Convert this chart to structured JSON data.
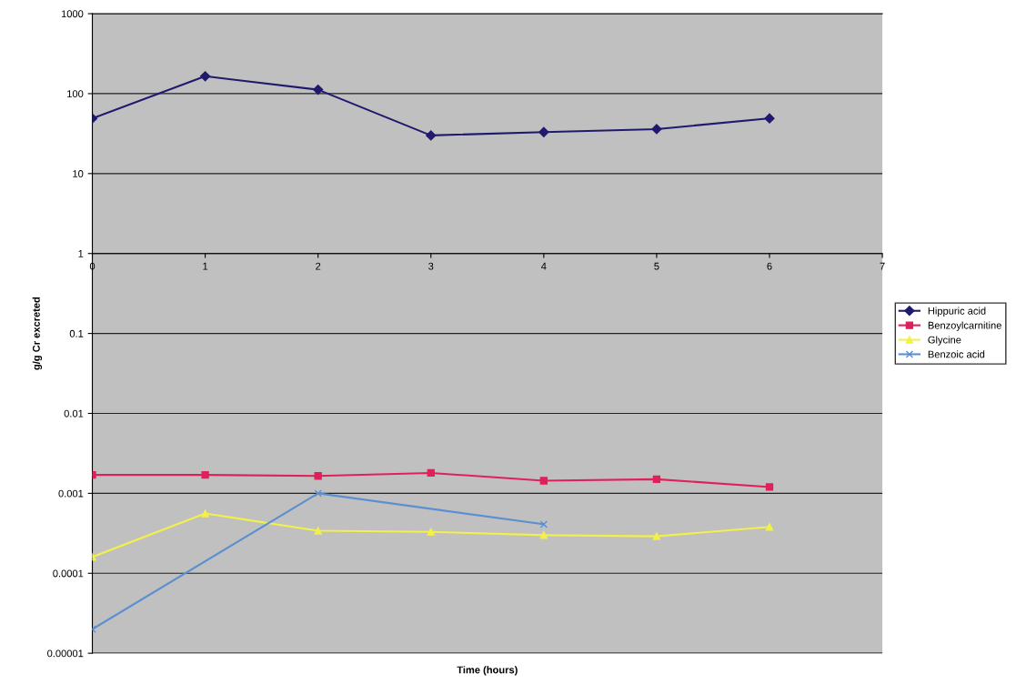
{
  "chart_data": {
    "type": "line",
    "xlabel": "Time (hours)",
    "ylabel": "g/g Cr excreted",
    "x": [
      0,
      1,
      2,
      3,
      4,
      5,
      6
    ],
    "series": [
      {
        "name": "Hippuric acid",
        "color": "#1f1a6e",
        "marker": "diamond",
        "values": [
          49,
          165,
          112,
          30,
          33,
          36,
          49
        ]
      },
      {
        "name": "Benzoylcarnitine",
        "color": "#e0205a",
        "marker": "square",
        "values": [
          0.0017,
          0.0017,
          0.00165,
          0.0018,
          0.00144,
          0.0015,
          0.0012
        ]
      },
      {
        "name": "Glycine",
        "color": "#f2f04a",
        "marker": "triangle",
        "values": [
          0.00016,
          0.00056,
          0.00034,
          0.00033,
          0.0003,
          0.00029,
          0.00038
        ]
      },
      {
        "name": "Benzoic acid",
        "color": "#5b8fd0",
        "marker": "cross",
        "x": [
          0,
          2,
          4
        ],
        "values": [
          2e-05,
          0.001,
          0.00041
        ]
      }
    ],
    "log": "y",
    "xlim": [
      0,
      7
    ],
    "xticks": [
      0,
      1,
      2,
      3,
      4,
      5,
      6,
      7
    ],
    "ylim": [
      1e-05,
      1000
    ],
    "yticks": [
      {
        "value": 1e-05,
        "label": "0.00001"
      },
      {
        "value": 0.0001,
        "label": "0.0001"
      },
      {
        "value": 0.001,
        "label": "0.001"
      },
      {
        "value": 0.01,
        "label": "0.01"
      },
      {
        "value": 0.1,
        "label": "0.1"
      },
      {
        "value": 1,
        "label": "1"
      },
      {
        "value": 10,
        "label": "10"
      },
      {
        "value": 100,
        "label": "100"
      },
      {
        "value": 1000,
        "label": "1000"
      }
    ],
    "grid": "y",
    "legend": "right"
  }
}
